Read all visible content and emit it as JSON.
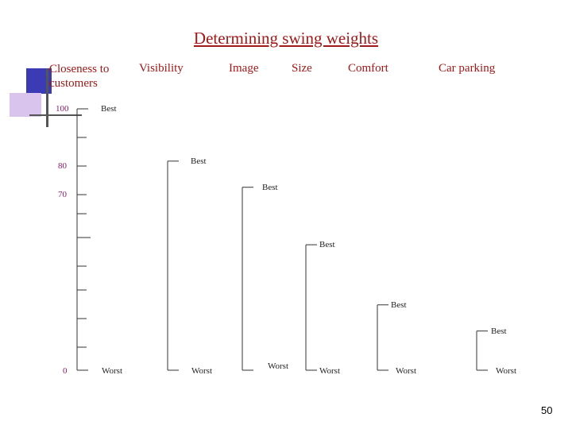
{
  "title": "Determining swing weights",
  "headers": [
    {
      "id": "closeness",
      "line1": "Closeness to",
      "line2": "customers"
    },
    {
      "id": "visibility",
      "line1": "Visibility",
      "line2": ""
    },
    {
      "id": "image",
      "line1": "Image",
      "line2": ""
    },
    {
      "id": "size",
      "line1": "Size",
      "line2": ""
    },
    {
      "id": "comfort",
      "line1": "Comfort",
      "line2": ""
    },
    {
      "id": "car-parking",
      "line1": "Car parking",
      "line2": ""
    }
  ],
  "scale_ticks": [
    "100",
    "80",
    "70",
    "0"
  ],
  "criteria": [
    {
      "name": "Closeness to customers",
      "weight": 100,
      "best_label": "Best",
      "worst_label": "Worst"
    },
    {
      "name": "Visibility",
      "weight": 80,
      "best_label": "Best",
      "worst_label": "Worst"
    },
    {
      "name": "Image",
      "weight": 70,
      "best_label": "Best",
      "worst_label": "Worst"
    },
    {
      "name": "Size",
      "weight": 48,
      "best_label": "Best",
      "worst_label": "Worst"
    },
    {
      "name": "Comfort",
      "weight": 25,
      "best_label": "Best",
      "worst_label": "Worst"
    },
    {
      "name": "Car parking",
      "weight": 15,
      "best_label": "Best",
      "worst_label": "Worst"
    }
  ],
  "page_number": "50"
}
